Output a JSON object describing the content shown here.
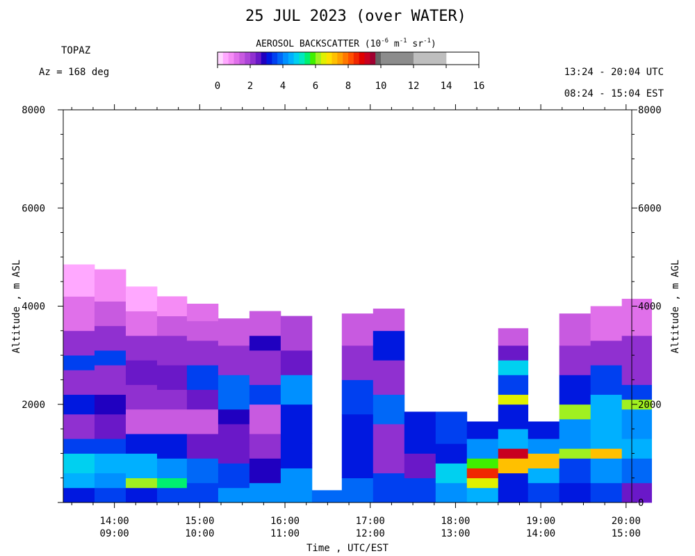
{
  "header": {
    "title": "25 JUL 2023 (over WATER)",
    "instrument": "TOPAZ",
    "azimuth": "Az = 168 deg",
    "utc_range": "13:24 - 20:04 UTC",
    "est_range": "08:24 - 15:04 EST"
  },
  "colorbar": {
    "title_prefix": "AEROSOL BACKSCATTER (10",
    "exp1": "-6",
    "mid1": " m",
    "exp2": "-1",
    "mid2": " sr",
    "exp3": "-1",
    "suffix": ")",
    "tick_labels": [
      "0",
      "2",
      "4",
      "6",
      "8",
      "10",
      "12",
      "14",
      "16"
    ],
    "range": [
      0,
      16
    ],
    "bin_edges": [
      0,
      0.333,
      0.667,
      1,
      1.333,
      1.667,
      2,
      2.333,
      2.667,
      3,
      3.333,
      3.667,
      4,
      4.333,
      4.667,
      5,
      5.333,
      5.667,
      6,
      6.333,
      6.667,
      7,
      7.333,
      7.667,
      8,
      8.333,
      8.667,
      9,
      9.333,
      9.667,
      10,
      12,
      14,
      16
    ],
    "colors": [
      "#ffd6ff",
      "#ffa8ff",
      "#f58cf5",
      "#e070ea",
      "#c85ae0",
      "#ad45d8",
      "#9030d0",
      "#6a18c8",
      "#2000c0",
      "#0018e0",
      "#0040f0",
      "#0068f8",
      "#0090ff",
      "#00b0ff",
      "#00d0f0",
      "#00e8c0",
      "#00f070",
      "#40f000",
      "#a0f020",
      "#e0f000",
      "#ffe000",
      "#ffc000",
      "#ffa000",
      "#ff7800",
      "#ff5000",
      "#f02800",
      "#e00000",
      "#c80020",
      "#a00030",
      "#646464",
      "#8c8c8c",
      "#bebebe"
    ]
  },
  "axes": {
    "xlabel": "Time , UTC/EST",
    "ylabel_left": "Altitude , m ASL",
    "ylabel_right": "Altitude , m AGL",
    "left_tick_labels": [
      "8000",
      "6000",
      "4000",
      "2000"
    ],
    "right_tick_labels": [
      "8000",
      "6000",
      "4000",
      "2000",
      "0"
    ],
    "x_tick_labels": [
      {
        "utc": "14:00",
        "est": "09:00"
      },
      {
        "utc": "15:00",
        "est": "10:00"
      },
      {
        "utc": "16:00",
        "est": "11:00"
      },
      {
        "utc": "17:00",
        "est": "12:00"
      },
      {
        "utc": "18:00",
        "est": "13:00"
      },
      {
        "utc": "19:00",
        "est": "14:00"
      },
      {
        "utc": "20:00",
        "est": "15:00"
      }
    ]
  },
  "chart_data": {
    "type": "heatmap",
    "title": "25 JUL 2023 (over WATER)",
    "xlabel": "Time , UTC/EST",
    "ylabel": "Altitude , m ASL",
    "x_unit": "UTC",
    "xlim": [
      "13:24",
      "20:04"
    ],
    "ylim": [
      0,
      8000
    ],
    "value_range": [
      0,
      16
    ],
    "y_ticks": [
      0,
      2000,
      4000,
      6000,
      8000
    ],
    "x_ticks": [
      "14:00",
      "15:00",
      "16:00",
      "17:00",
      "18:00",
      "19:00",
      "20:00"
    ],
    "columns": [
      {
        "start": "13:24",
        "end": "13:46",
        "top": 4850,
        "layers": [
          {
            "y0": 0,
            "y1": 300,
            "v": 3.2
          },
          {
            "y0": 300,
            "y1": 600,
            "v": 4.5
          },
          {
            "y0": 600,
            "y1": 1000,
            "v": 4.8
          },
          {
            "y0": 1000,
            "y1": 1300,
            "v": 3.6
          },
          {
            "y0": 1300,
            "y1": 1800,
            "v": 2.2
          },
          {
            "y0": 1800,
            "y1": 2200,
            "v": 3.2
          },
          {
            "y0": 2200,
            "y1": 2700,
            "v": 2.0
          },
          {
            "y0": 2700,
            "y1": 3000,
            "v": 3.4
          },
          {
            "y0": 3000,
            "y1": 3500,
            "v": 2.0
          },
          {
            "y0": 3500,
            "y1": 4200,
            "v": 1.2
          },
          {
            "y0": 4200,
            "y1": 4850,
            "v": 0.6
          }
        ]
      },
      {
        "start": "13:46",
        "end": "14:08",
        "top": 4750,
        "layers": [
          {
            "y0": 0,
            "y1": 300,
            "v": 3.4
          },
          {
            "y0": 300,
            "y1": 600,
            "v": 4.2
          },
          {
            "y0": 600,
            "y1": 1000,
            "v": 4.6
          },
          {
            "y0": 1000,
            "y1": 1300,
            "v": 3.4
          },
          {
            "y0": 1300,
            "y1": 1800,
            "v": 2.4
          },
          {
            "y0": 1800,
            "y1": 2200,
            "v": 2.8
          },
          {
            "y0": 2200,
            "y1": 2800,
            "v": 2.0
          },
          {
            "y0": 2800,
            "y1": 3100,
            "v": 3.6
          },
          {
            "y0": 3100,
            "y1": 3600,
            "v": 2.0
          },
          {
            "y0": 3600,
            "y1": 4100,
            "v": 1.4
          },
          {
            "y0": 4100,
            "y1": 4750,
            "v": 0.7
          }
        ]
      },
      {
        "start": "14:08",
        "end": "14:30",
        "top": 4400,
        "layers": [
          {
            "y0": 0,
            "y1": 300,
            "v": 3.3
          },
          {
            "y0": 300,
            "y1": 500,
            "v": 6.0
          },
          {
            "y0": 500,
            "y1": 1000,
            "v": 4.4
          },
          {
            "y0": 1000,
            "y1": 1400,
            "v": 3.2
          },
          {
            "y0": 1400,
            "y1": 1900,
            "v": 1.6
          },
          {
            "y0": 1900,
            "y1": 2400,
            "v": 2.2
          },
          {
            "y0": 2400,
            "y1": 2900,
            "v": 2.6
          },
          {
            "y0": 2900,
            "y1": 3400,
            "v": 2.0
          },
          {
            "y0": 3400,
            "y1": 3900,
            "v": 1.2
          },
          {
            "y0": 3900,
            "y1": 4400,
            "v": 0.6
          }
        ]
      },
      {
        "start": "14:30",
        "end": "14:51",
        "top": 4200,
        "layers": [
          {
            "y0": 0,
            "y1": 300,
            "v": 3.4
          },
          {
            "y0": 300,
            "y1": 500,
            "v": 5.6
          },
          {
            "y0": 500,
            "y1": 900,
            "v": 4.2
          },
          {
            "y0": 900,
            "y1": 1400,
            "v": 3.0
          },
          {
            "y0": 1400,
            "y1": 1900,
            "v": 1.4
          },
          {
            "y0": 1900,
            "y1": 2300,
            "v": 2.0
          },
          {
            "y0": 2300,
            "y1": 2800,
            "v": 2.6
          },
          {
            "y0": 2800,
            "y1": 3400,
            "v": 2.0
          },
          {
            "y0": 3400,
            "y1": 3800,
            "v": 1.4
          },
          {
            "y0": 3800,
            "y1": 4200,
            "v": 0.7
          }
        ]
      },
      {
        "start": "14:51",
        "end": "15:13",
        "top": 4050,
        "layers": [
          {
            "y0": 0,
            "y1": 400,
            "v": 3.6
          },
          {
            "y0": 400,
            "y1": 900,
            "v": 3.8
          },
          {
            "y0": 900,
            "y1": 1400,
            "v": 2.6
          },
          {
            "y0": 1400,
            "y1": 1900,
            "v": 1.6
          },
          {
            "y0": 1900,
            "y1": 2300,
            "v": 2.4
          },
          {
            "y0": 2300,
            "y1": 2800,
            "v": 3.6
          },
          {
            "y0": 2800,
            "y1": 3300,
            "v": 2.0
          },
          {
            "y0": 3300,
            "y1": 3700,
            "v": 1.6
          },
          {
            "y0": 3700,
            "y1": 4050,
            "v": 1.0
          }
        ]
      },
      {
        "start": "15:13",
        "end": "15:35",
        "top": 3750,
        "layers": [
          {
            "y0": 0,
            "y1": 300,
            "v": 4.0
          },
          {
            "y0": 300,
            "y1": 800,
            "v": 3.6
          },
          {
            "y0": 800,
            "y1": 1600,
            "v": 2.4
          },
          {
            "y0": 1600,
            "y1": 1900,
            "v": 2.8
          },
          {
            "y0": 1900,
            "y1": 2600,
            "v": 3.8
          },
          {
            "y0": 2600,
            "y1": 3200,
            "v": 2.2
          },
          {
            "y0": 3200,
            "y1": 3750,
            "v": 1.4
          }
        ]
      },
      {
        "start": "15:35",
        "end": "15:57",
        "top": 3900,
        "layers": [
          {
            "y0": 0,
            "y1": 400,
            "v": 4.2
          },
          {
            "y0": 400,
            "y1": 900,
            "v": 2.8
          },
          {
            "y0": 900,
            "y1": 1400,
            "v": 2.0
          },
          {
            "y0": 1400,
            "y1": 2000,
            "v": 1.6
          },
          {
            "y0": 2000,
            "y1": 2400,
            "v": 3.6
          },
          {
            "y0": 2400,
            "y1": 3100,
            "v": 2.2
          },
          {
            "y0": 3100,
            "y1": 3400,
            "v": 2.8
          },
          {
            "y0": 3400,
            "y1": 3900,
            "v": 1.4
          }
        ]
      },
      {
        "start": "15:57",
        "end": "16:19",
        "top": 3800,
        "layers": [
          {
            "y0": 0,
            "y1": 700,
            "v": 4.0
          },
          {
            "y0": 700,
            "y1": 1200,
            "v": 3.0
          },
          {
            "y0": 1200,
            "y1": 2000,
            "v": 3.2
          },
          {
            "y0": 2000,
            "y1": 2600,
            "v": 4.2
          },
          {
            "y0": 2600,
            "y1": 3100,
            "v": 2.4
          },
          {
            "y0": 3100,
            "y1": 3800,
            "v": 1.8
          }
        ]
      },
      {
        "start": "16:19",
        "end": "16:40",
        "top": 250,
        "layers": [
          {
            "y0": 0,
            "y1": 250,
            "v": 3.8
          }
        ]
      },
      {
        "start": "16:40",
        "end": "17:02",
        "top": 3850,
        "layers": [
          {
            "y0": 0,
            "y1": 500,
            "v": 3.8
          },
          {
            "y0": 500,
            "y1": 1800,
            "v": 3.1
          },
          {
            "y0": 1800,
            "y1": 2500,
            "v": 3.6
          },
          {
            "y0": 2500,
            "y1": 3200,
            "v": 2.0
          },
          {
            "y0": 3200,
            "y1": 3850,
            "v": 1.4
          }
        ]
      },
      {
        "start": "17:02",
        "end": "17:24",
        "top": 3950,
        "layers": [
          {
            "y0": 0,
            "y1": 600,
            "v": 3.6
          },
          {
            "y0": 600,
            "y1": 1600,
            "v": 2.2
          },
          {
            "y0": 1600,
            "y1": 2200,
            "v": 3.8
          },
          {
            "y0": 2200,
            "y1": 2900,
            "v": 2.2
          },
          {
            "y0": 2900,
            "y1": 3500,
            "v": 3.2
          },
          {
            "y0": 3500,
            "y1": 3950,
            "v": 1.4
          }
        ]
      },
      {
        "start": "17:24",
        "end": "17:46",
        "top": 1850,
        "layers": [
          {
            "y0": 0,
            "y1": 500,
            "v": 3.6
          },
          {
            "y0": 500,
            "y1": 1000,
            "v": 2.4
          },
          {
            "y0": 1000,
            "y1": 1850,
            "v": 3.0
          }
        ]
      },
      {
        "start": "17:46",
        "end": "18:08",
        "top": 1850,
        "layers": [
          {
            "y0": 0,
            "y1": 400,
            "v": 4.2
          },
          {
            "y0": 400,
            "y1": 800,
            "v": 4.8
          },
          {
            "y0": 800,
            "y1": 1200,
            "v": 3.1
          },
          {
            "y0": 1200,
            "y1": 1850,
            "v": 3.6
          }
        ]
      },
      {
        "start": "18:08",
        "end": "18:30",
        "top": 1650,
        "layers": [
          {
            "y0": 0,
            "y1": 300,
            "v": 4.6
          },
          {
            "y0": 300,
            "y1": 500,
            "v": 6.4
          },
          {
            "y0": 500,
            "y1": 700,
            "v": 8.5
          },
          {
            "y0": 700,
            "y1": 900,
            "v": 5.8
          },
          {
            "y0": 900,
            "y1": 1300,
            "v": 4.2
          },
          {
            "y0": 1300,
            "y1": 1650,
            "v": 3.2
          }
        ]
      },
      {
        "start": "18:30",
        "end": "18:51",
        "top": 3550,
        "layers": [
          {
            "y0": 0,
            "y1": 600,
            "v": 3.3
          },
          {
            "y0": 600,
            "y1": 900,
            "v": 7.0
          },
          {
            "y0": 900,
            "y1": 1100,
            "v": 9.2
          },
          {
            "y0": 1100,
            "y1": 1500,
            "v": 4.4
          },
          {
            "y0": 1500,
            "y1": 2000,
            "v": 3.1
          },
          {
            "y0": 2000,
            "y1": 2200,
            "v": 6.6
          },
          {
            "y0": 2200,
            "y1": 2600,
            "v": 3.4
          },
          {
            "y0": 2600,
            "y1": 2900,
            "v": 4.8
          },
          {
            "y0": 2900,
            "y1": 3200,
            "v": 2.4
          },
          {
            "y0": 3200,
            "y1": 3550,
            "v": 1.6
          }
        ]
      },
      {
        "start": "18:51",
        "end": "19:13",
        "top": 1650,
        "layers": [
          {
            "y0": 0,
            "y1": 400,
            "v": 3.4
          },
          {
            "y0": 400,
            "y1": 700,
            "v": 4.4
          },
          {
            "y0": 700,
            "y1": 1000,
            "v": 7.2
          },
          {
            "y0": 1000,
            "y1": 1300,
            "v": 4.2
          },
          {
            "y0": 1300,
            "y1": 1650,
            "v": 3.1
          }
        ]
      },
      {
        "start": "19:13",
        "end": "19:35",
        "top": 3850,
        "layers": [
          {
            "y0": 0,
            "y1": 400,
            "v": 3.3
          },
          {
            "y0": 400,
            "y1": 900,
            "v": 3.6
          },
          {
            "y0": 900,
            "y1": 1100,
            "v": 6.2
          },
          {
            "y0": 1100,
            "y1": 1700,
            "v": 4.2
          },
          {
            "y0": 1700,
            "y1": 2000,
            "v": 6.0
          },
          {
            "y0": 2000,
            "y1": 2600,
            "v": 3.2
          },
          {
            "y0": 2600,
            "y1": 3200,
            "v": 2.2
          },
          {
            "y0": 3200,
            "y1": 3850,
            "v": 1.6
          }
        ]
      },
      {
        "start": "19:35",
        "end": "19:57",
        "top": 4000,
        "layers": [
          {
            "y0": 0,
            "y1": 400,
            "v": 3.4
          },
          {
            "y0": 400,
            "y1": 900,
            "v": 4.2
          },
          {
            "y0": 900,
            "y1": 1100,
            "v": 7.3
          },
          {
            "y0": 1100,
            "y1": 1700,
            "v": 4.4
          },
          {
            "y0": 1700,
            "y1": 2200,
            "v": 4.6
          },
          {
            "y0": 2200,
            "y1": 2800,
            "v": 3.4
          },
          {
            "y0": 2800,
            "y1": 3300,
            "v": 2.2
          },
          {
            "y0": 3300,
            "y1": 4000,
            "v": 1.2
          }
        ]
      },
      {
        "start": "19:57",
        "end": "20:18",
        "top": 4150,
        "layers": [
          {
            "y0": 0,
            "y1": 400,
            "v": 2.6
          },
          {
            "y0": 400,
            "y1": 900,
            "v": 3.8
          },
          {
            "y0": 900,
            "y1": 1300,
            "v": 4.4
          },
          {
            "y0": 1300,
            "y1": 1900,
            "v": 4.0
          },
          {
            "y0": 1900,
            "y1": 2100,
            "v": 6.0
          },
          {
            "y0": 2100,
            "y1": 2400,
            "v": 3.6
          },
          {
            "y0": 2400,
            "y1": 3400,
            "v": 2.0
          },
          {
            "y0": 3400,
            "y1": 4150,
            "v": 1.2
          }
        ]
      }
    ]
  }
}
